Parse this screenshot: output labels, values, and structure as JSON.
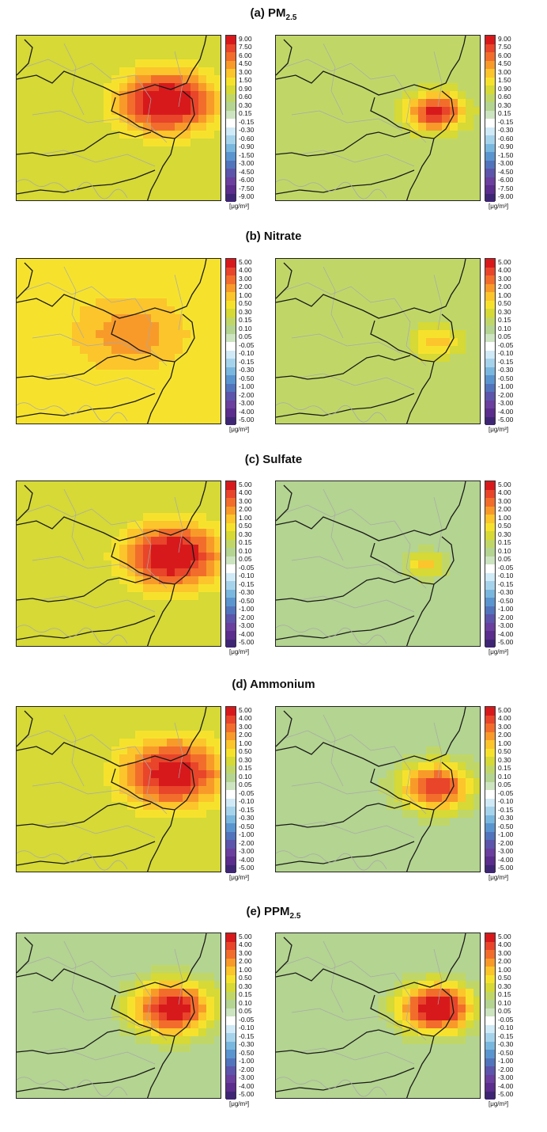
{
  "panels": [
    {
      "id": "a",
      "label": "(a) PM",
      "sub": "2.5",
      "ticks": [
        "9.00",
        "7.50",
        "6.00",
        "4.50",
        "3.00",
        "1.50",
        "0.90",
        "0.60",
        "0.30",
        "0.15",
        "-0.15",
        "-0.30",
        "-0.60",
        "-0.90",
        "-1.50",
        "-3.00",
        "-4.50",
        "-6.00",
        "-7.50",
        "-9.00"
      ],
      "maps": [
        {
          "center": [
            0.73,
            0.4
          ],
          "peak": 10,
          "spread": 1.0,
          "bg": 3
        },
        {
          "center": [
            0.78,
            0.46
          ],
          "peak": 9,
          "spread": 0.6,
          "bg": 2
        }
      ]
    },
    {
      "id": "b",
      "label": "(b) Nitrate",
      "sub": "",
      "ticks": [
        "5.00",
        "4.00",
        "3.00",
        "2.00",
        "1.00",
        "0.50",
        "0.30",
        "0.15",
        "0.10",
        "0.05",
        "-0.05",
        "-0.10",
        "-0.15",
        "-0.30",
        "-0.50",
        "-1.00",
        "-2.00",
        "-3.00",
        "-4.00",
        "-5.00"
      ],
      "maps": [
        {
          "center": [
            0.55,
            0.45
          ],
          "peak": 5,
          "spread": 1.6,
          "bg": 4
        },
        {
          "center": [
            0.78,
            0.5
          ],
          "peak": 5,
          "spread": 0.5,
          "bg": 2
        }
      ]
    },
    {
      "id": "c",
      "label": "(c) Sulfate",
      "sub": "",
      "ticks": [
        "5.00",
        "4.00",
        "3.00",
        "2.00",
        "1.00",
        "0.50",
        "0.30",
        "0.15",
        "0.10",
        "0.05",
        "-0.05",
        "-0.10",
        "-0.15",
        "-0.30",
        "-0.50",
        "-1.00",
        "-2.00",
        "-3.00",
        "-4.00",
        "-5.00"
      ],
      "maps": [
        {
          "center": [
            0.76,
            0.45
          ],
          "peak": 10,
          "spread": 1.0,
          "bg": 3
        },
        {
          "center": [
            0.73,
            0.5
          ],
          "peak": 5,
          "spread": 0.4,
          "bg": 1
        }
      ]
    },
    {
      "id": "d",
      "label": "(d) Ammonium",
      "sub": "",
      "ticks": [
        "5.00",
        "4.00",
        "3.00",
        "2.00",
        "1.00",
        "0.50",
        "0.30",
        "0.15",
        "0.10",
        "0.05",
        "-0.05",
        "-0.10",
        "-0.15",
        "-0.30",
        "-0.50",
        "-1.00",
        "-2.00",
        "-3.00",
        "-4.00",
        "-5.00"
      ],
      "maps": [
        {
          "center": [
            0.76,
            0.4
          ],
          "peak": 9,
          "spread": 1.1,
          "bg": 3
        },
        {
          "center": [
            0.78,
            0.48
          ],
          "peak": 8,
          "spread": 0.8,
          "bg": 1
        }
      ]
    },
    {
      "id": "e",
      "label": "(e) PPM",
      "sub": "2.5",
      "ticks": [
        "5.00",
        "4.00",
        "3.00",
        "2.00",
        "1.00",
        "0.50",
        "0.30",
        "0.15",
        "0.10",
        "0.05",
        "-0.05",
        "-0.10",
        "-0.15",
        "-0.30",
        "-0.50",
        "-1.00",
        "-2.00",
        "-3.00",
        "-4.00",
        "-5.00"
      ],
      "maps": [
        {
          "center": [
            0.76,
            0.45
          ],
          "peak": 9,
          "spread": 0.9,
          "bg": 1
        },
        {
          "center": [
            0.78,
            0.45
          ],
          "peak": 10,
          "spread": 0.8,
          "bg": 1
        }
      ]
    }
  ],
  "unit_label": "[μg/m³]",
  "colors": {
    "scale": [
      "#d7191c",
      "#e8452a",
      "#f26d2b",
      "#f89a2a",
      "#fcc52c",
      "#f6e22d",
      "#d6d936",
      "#c0d768",
      "#b4d491",
      "#cde4c0",
      "#ffffff",
      "#d0eaf7",
      "#a6d3ec",
      "#7ab7de",
      "#5b95cf",
      "#5274bd",
      "#5c55ab",
      "#6a3f9e",
      "#5b2d8c",
      "#3f2675"
    ],
    "border": "#1a1a1a",
    "district": "#a9a9a9"
  }
}
